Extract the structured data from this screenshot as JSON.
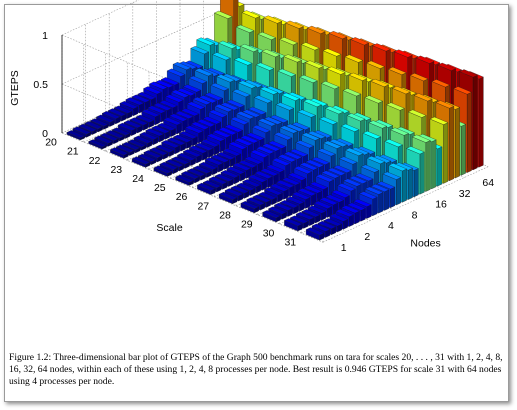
{
  "caption": "Figure 1.2: Three-dimensional bar plot of GTEPS of the Graph 500 benchmark runs on tara for scales 20, . . . , 31 with 1, 2, 4, 8, 16, 32, 64 nodes, within each of these using 1, 2, 4, 8 processes per node. Best result is 0.946 GTEPS for scale 31 with 64 nodes using 4 processes per node.",
  "chart_data": {
    "type": "bar3d",
    "title": "",
    "zlabel": "GTEPS",
    "xlabel": "Scale",
    "ylabel": "Nodes",
    "zlim": [
      0,
      1
    ],
    "z_ticks": [
      "0",
      "0.5",
      "1"
    ],
    "scales": [
      "20",
      "21",
      "22",
      "23",
      "24",
      "25",
      "26",
      "27",
      "28",
      "29",
      "30",
      "31"
    ],
    "nodes": [
      "1",
      "2",
      "4",
      "8",
      "16",
      "32",
      "64"
    ],
    "processes_per_node": [
      1,
      2,
      4,
      8
    ],
    "grid": true,
    "colormap": "jet",
    "best_result": {
      "gteps": 0.946,
      "scale": "31",
      "nodes": "64",
      "processes_per_node": 4
    },
    "series": [
      {
        "scale": "20",
        "values": [
          [
            0.02,
            0.03,
            0.03,
            0.03
          ],
          [
            0.03,
            0.04,
            0.05,
            0.05
          ],
          [
            0.05,
            0.07,
            0.08,
            0.08
          ],
          [
            0.08,
            0.11,
            0.13,
            0.12
          ],
          [
            0.12,
            0.18,
            0.22,
            0.2
          ],
          [
            0.18,
            0.3,
            0.36,
            0.33
          ],
          [
            0.26,
            0.55,
            0.75,
            0.62
          ]
        ]
      },
      {
        "scale": "21",
        "values": [
          [
            0.02,
            0.03,
            0.03,
            0.03
          ],
          [
            0.03,
            0.05,
            0.05,
            0.05
          ],
          [
            0.05,
            0.08,
            0.09,
            0.09
          ],
          [
            0.09,
            0.12,
            0.14,
            0.13
          ],
          [
            0.14,
            0.2,
            0.25,
            0.22
          ],
          [
            0.2,
            0.33,
            0.42,
            0.38
          ],
          [
            0.28,
            0.5,
            0.62,
            0.58
          ]
        ]
      },
      {
        "scale": "22",
        "values": [
          [
            0.03,
            0.03,
            0.03,
            0.03
          ],
          [
            0.04,
            0.05,
            0.06,
            0.06
          ],
          [
            0.06,
            0.09,
            0.1,
            0.1
          ],
          [
            0.1,
            0.14,
            0.16,
            0.15
          ],
          [
            0.15,
            0.22,
            0.28,
            0.26
          ],
          [
            0.22,
            0.37,
            0.48,
            0.44
          ],
          [
            0.3,
            0.52,
            0.66,
            0.62
          ]
        ]
      },
      {
        "scale": "23",
        "values": [
          [
            0.03,
            0.03,
            0.04,
            0.04
          ],
          [
            0.04,
            0.06,
            0.06,
            0.06
          ],
          [
            0.07,
            0.1,
            0.11,
            0.11
          ],
          [
            0.11,
            0.15,
            0.18,
            0.17
          ],
          [
            0.17,
            0.25,
            0.31,
            0.29
          ],
          [
            0.25,
            0.41,
            0.52,
            0.48
          ],
          [
            0.33,
            0.56,
            0.7,
            0.66
          ]
        ]
      },
      {
        "scale": "24",
        "values": [
          [
            0.03,
            0.04,
            0.04,
            0.04
          ],
          [
            0.05,
            0.06,
            0.07,
            0.07
          ],
          [
            0.08,
            0.11,
            0.12,
            0.12
          ],
          [
            0.12,
            0.17,
            0.2,
            0.19
          ],
          [
            0.19,
            0.28,
            0.34,
            0.32
          ],
          [
            0.27,
            0.44,
            0.56,
            0.52
          ],
          [
            0.35,
            0.6,
            0.74,
            0.7
          ]
        ]
      },
      {
        "scale": "25",
        "values": [
          [
            0.03,
            0.04,
            0.04,
            0.04
          ],
          [
            0.05,
            0.07,
            0.07,
            0.07
          ],
          [
            0.08,
            0.12,
            0.13,
            0.13
          ],
          [
            0.13,
            0.18,
            0.22,
            0.21
          ],
          [
            0.2,
            0.3,
            0.37,
            0.35
          ],
          [
            0.29,
            0.47,
            0.59,
            0.55
          ],
          [
            0.38,
            0.63,
            0.78,
            0.74
          ]
        ]
      },
      {
        "scale": "26",
        "values": [
          [
            0.04,
            0.04,
            0.05,
            0.05
          ],
          [
            0.06,
            0.07,
            0.08,
            0.08
          ],
          [
            0.09,
            0.13,
            0.14,
            0.14
          ],
          [
            0.14,
            0.2,
            0.24,
            0.23
          ],
          [
            0.22,
            0.32,
            0.4,
            0.38
          ],
          [
            0.31,
            0.5,
            0.62,
            0.58
          ],
          [
            0.4,
            0.66,
            0.81,
            0.77
          ]
        ]
      },
      {
        "scale": "27",
        "values": [
          [
            0.04,
            0.05,
            0.05,
            0.05
          ],
          [
            0.06,
            0.08,
            0.09,
            0.09
          ],
          [
            0.1,
            0.14,
            0.15,
            0.15
          ],
          [
            0.15,
            0.21,
            0.26,
            0.25
          ],
          [
            0.23,
            0.34,
            0.42,
            0.4
          ],
          [
            0.33,
            0.52,
            0.65,
            0.61
          ],
          [
            0.42,
            0.69,
            0.84,
            0.8
          ]
        ]
      },
      {
        "scale": "28",
        "values": [
          [
            0.04,
            0.05,
            0.05,
            0.05
          ],
          [
            0.07,
            0.08,
            0.09,
            0.09
          ],
          [
            0.11,
            0.15,
            0.16,
            0.16
          ],
          [
            0.16,
            0.22,
            0.27,
            0.26
          ],
          [
            0.24,
            0.36,
            0.44,
            0.42
          ],
          [
            0.34,
            0.54,
            0.68,
            0.64
          ],
          [
            0.44,
            0.72,
            0.87,
            0.83
          ]
        ]
      },
      {
        "scale": "29",
        "values": [
          [
            0.04,
            0.05,
            0.06,
            0.06
          ],
          [
            0.07,
            0.09,
            0.1,
            0.1
          ],
          [
            0.11,
            0.16,
            0.17,
            0.17
          ],
          [
            0.17,
            0.23,
            0.29,
            0.27
          ],
          [
            0.25,
            0.38,
            0.46,
            0.44
          ],
          [
            0.36,
            0.56,
            0.7,
            0.66
          ],
          [
            0.46,
            0.75,
            0.9,
            0.86
          ]
        ]
      },
      {
        "scale": "30",
        "values": [
          [
            0.05,
            0.05,
            0.06,
            0.06
          ],
          [
            0.07,
            0.09,
            0.1,
            0.1
          ],
          [
            0.12,
            0.16,
            0.18,
            0.18
          ],
          [
            0.18,
            0.24,
            0.3,
            0.28
          ],
          [
            0.26,
            0.39,
            0.48,
            0.46
          ],
          [
            0.37,
            0.58,
            0.72,
            0.68
          ],
          [
            0.48,
            0.78,
            0.92,
            0.88
          ]
        ]
      },
      {
        "scale": "31",
        "values": [
          [
            0.05,
            0.06,
            0.06,
            0.06
          ],
          [
            0.08,
            0.1,
            0.11,
            0.11
          ],
          [
            0.12,
            0.17,
            0.19,
            0.19
          ],
          [
            0.19,
            0.26,
            0.32,
            0.3
          ],
          [
            0.27,
            0.41,
            0.5,
            0.48
          ],
          [
            0.38,
            0.6,
            0.74,
            0.7
          ],
          [
            0.5,
            0.8,
            0.946,
            0.9
          ]
        ]
      }
    ]
  }
}
